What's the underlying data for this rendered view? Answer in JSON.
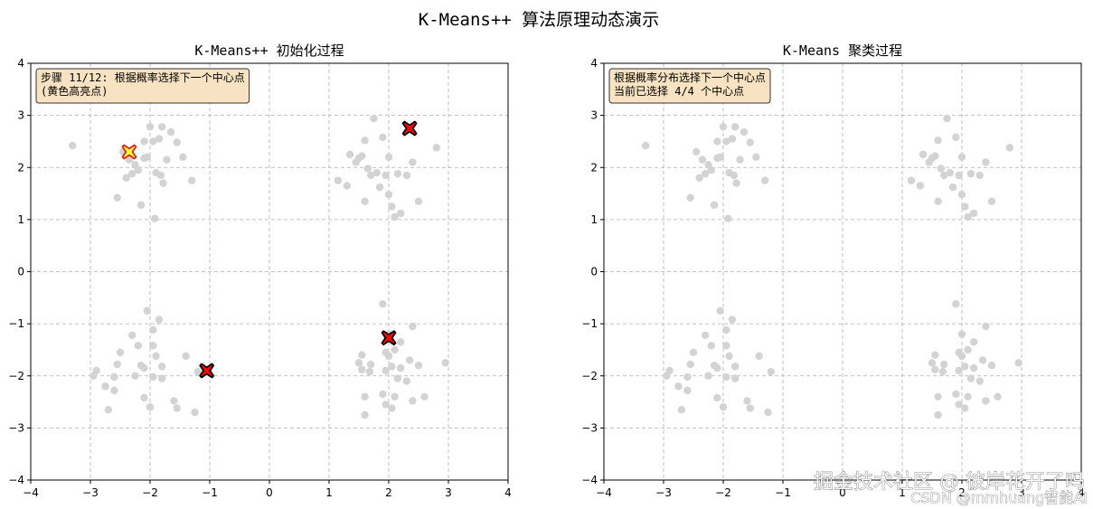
{
  "figure": {
    "suptitle": "K-Means++ 算法原理动态演示",
    "watermark": "掘金技术社区 @ 彼岸花开了吗",
    "watermark_sub": "CSDN @mmhuang智能AI"
  },
  "chart_data": [
    {
      "type": "scatter",
      "title": "K-Means++ 初始化过程",
      "xlim": [
        -4,
        4
      ],
      "ylim": [
        -4,
        4
      ],
      "xticks": [
        -4,
        -3,
        -2,
        -1,
        0,
        1,
        2,
        3,
        4
      ],
      "yticks": [
        -4,
        -3,
        -2,
        -1,
        0,
        1,
        2,
        3,
        4
      ],
      "grid": true,
      "annotation": [
        "步骤 11/12: 根据概率选择下一个中心点",
        "(黄色高亮点)"
      ],
      "point_color": "#d3d3d3",
      "centers": [
        {
          "x": -2.35,
          "y": 2.3,
          "color": "#ffff33",
          "edge": "#e02020",
          "highlight": true
        },
        {
          "x": 2.35,
          "y": 2.75,
          "color": "#ff0000",
          "edge": "#000000",
          "highlight": false
        },
        {
          "x": 2.0,
          "y": -1.27,
          "color": "#ff0000",
          "edge": "#000000",
          "highlight": false
        },
        {
          "x": -1.05,
          "y": -1.9,
          "color": "#ff0000",
          "edge": "#000000",
          "highlight": false
        }
      ]
    },
    {
      "type": "scatter",
      "title": "K-Means 聚类过程",
      "xlim": [
        -4,
        4
      ],
      "ylim": [
        -4,
        4
      ],
      "xticks": [
        -4,
        -3,
        -2,
        -1,
        0,
        1,
        2,
        3,
        4
      ],
      "yticks": [
        -4,
        -3,
        -2,
        -1,
        0,
        1,
        2,
        3,
        4
      ],
      "grid": true,
      "annotation": [
        "根据概率分布选择下一个中心点",
        "当前已选择 4/4 个中心点"
      ],
      "point_color": "#d3d3d3",
      "centers": []
    }
  ],
  "points": [
    [
      -3.3,
      2.42
    ],
    [
      -2.55,
      1.42
    ],
    [
      -2.45,
      2.3
    ],
    [
      -2.4,
      1.8
    ],
    [
      -2.35,
      2.15
    ],
    [
      -2.3,
      1.88
    ],
    [
      -2.25,
      2.05
    ],
    [
      -2.2,
      1.95
    ],
    [
      -2.15,
      1.28
    ],
    [
      -2.1,
      2.5
    ],
    [
      -2.05,
      2.2
    ],
    [
      -2.0,
      2.78
    ],
    [
      -1.95,
      2.5
    ],
    [
      -1.92,
      1.02
    ],
    [
      -1.9,
      1.9
    ],
    [
      -1.85,
      2.55
    ],
    [
      -1.82,
      1.85
    ],
    [
      -1.8,
      2.78
    ],
    [
      -1.78,
      1.7
    ],
    [
      -1.72,
      2.15
    ],
    [
      -1.65,
      2.68
    ],
    [
      -1.55,
      2.48
    ],
    [
      -1.45,
      2.2
    ],
    [
      -1.3,
      1.75
    ],
    [
      -2.1,
      2.18
    ],
    [
      1.75,
      2.94
    ],
    [
      1.6,
      2.52
    ],
    [
      1.5,
      2.18
    ],
    [
      1.45,
      2.1
    ],
    [
      1.55,
      2.22
    ],
    [
      1.65,
      1.98
    ],
    [
      1.8,
      1.9
    ],
    [
      1.7,
      1.85
    ],
    [
      1.85,
      1.62
    ],
    [
      1.95,
      1.85
    ],
    [
      2.0,
      1.48
    ],
    [
      2.05,
      1.25
    ],
    [
      2.1,
      1.05
    ],
    [
      2.2,
      1.12
    ],
    [
      2.3,
      1.85
    ],
    [
      2.15,
      1.88
    ],
    [
      2.4,
      2.1
    ],
    [
      2.5,
      1.35
    ],
    [
      2.8,
      2.38
    ],
    [
      1.15,
      1.75
    ],
    [
      1.3,
      1.65
    ],
    [
      1.35,
      2.25
    ],
    [
      1.6,
      1.35
    ],
    [
      2.0,
      2.2
    ],
    [
      1.9,
      2.58
    ],
    [
      -2.05,
      -0.75
    ],
    [
      -1.85,
      -0.92
    ],
    [
      -1.95,
      -1.12
    ],
    [
      -2.3,
      -1.22
    ],
    [
      -1.95,
      -1.42
    ],
    [
      -2.2,
      -1.42
    ],
    [
      -1.9,
      -1.62
    ],
    [
      -2.5,
      -1.55
    ],
    [
      -2.55,
      -1.78
    ],
    [
      -1.8,
      -1.82
    ],
    [
      -2.1,
      -1.85
    ],
    [
      -2.25,
      -2.0
    ],
    [
      -2.6,
      -2.02
    ],
    [
      -1.95,
      -2.02
    ],
    [
      -1.8,
      -2.05
    ],
    [
      -2.9,
      -1.9
    ],
    [
      -2.95,
      -2.0
    ],
    [
      -2.75,
      -2.2
    ],
    [
      -2.6,
      -2.28
    ],
    [
      -2.1,
      -2.42
    ],
    [
      -1.6,
      -2.48
    ],
    [
      -2.0,
      -2.6
    ],
    [
      -1.55,
      -2.62
    ],
    [
      -2.7,
      -2.65
    ],
    [
      -1.25,
      -2.7
    ],
    [
      -1.4,
      -1.62
    ],
    [
      -1.2,
      -1.92
    ],
    [
      -2.15,
      -1.8
    ],
    [
      1.9,
      -0.62
    ],
    [
      2.4,
      -1.05
    ],
    [
      1.55,
      -1.6
    ],
    [
      1.95,
      -1.55
    ],
    [
      2.1,
      -1.5
    ],
    [
      2.0,
      -1.62
    ],
    [
      1.5,
      -1.75
    ],
    [
      1.7,
      -1.78
    ],
    [
      1.55,
      -1.88
    ],
    [
      1.68,
      -1.92
    ],
    [
      2.05,
      -1.82
    ],
    [
      1.95,
      -1.9
    ],
    [
      2.2,
      -1.85
    ],
    [
      2.35,
      -1.7
    ],
    [
      2.5,
      -1.8
    ],
    [
      2.15,
      -2.05
    ],
    [
      2.3,
      -2.1
    ],
    [
      1.6,
      -2.4
    ],
    [
      1.9,
      -2.35
    ],
    [
      2.1,
      -2.4
    ],
    [
      2.6,
      -2.4
    ],
    [
      2.4,
      -2.48
    ],
    [
      1.95,
      -2.55
    ],
    [
      2.05,
      -2.62
    ],
    [
      1.6,
      -2.75
    ],
    [
      2.95,
      -1.75
    ],
    [
      2.0,
      -1.2
    ],
    [
      2.2,
      -1.35
    ]
  ]
}
